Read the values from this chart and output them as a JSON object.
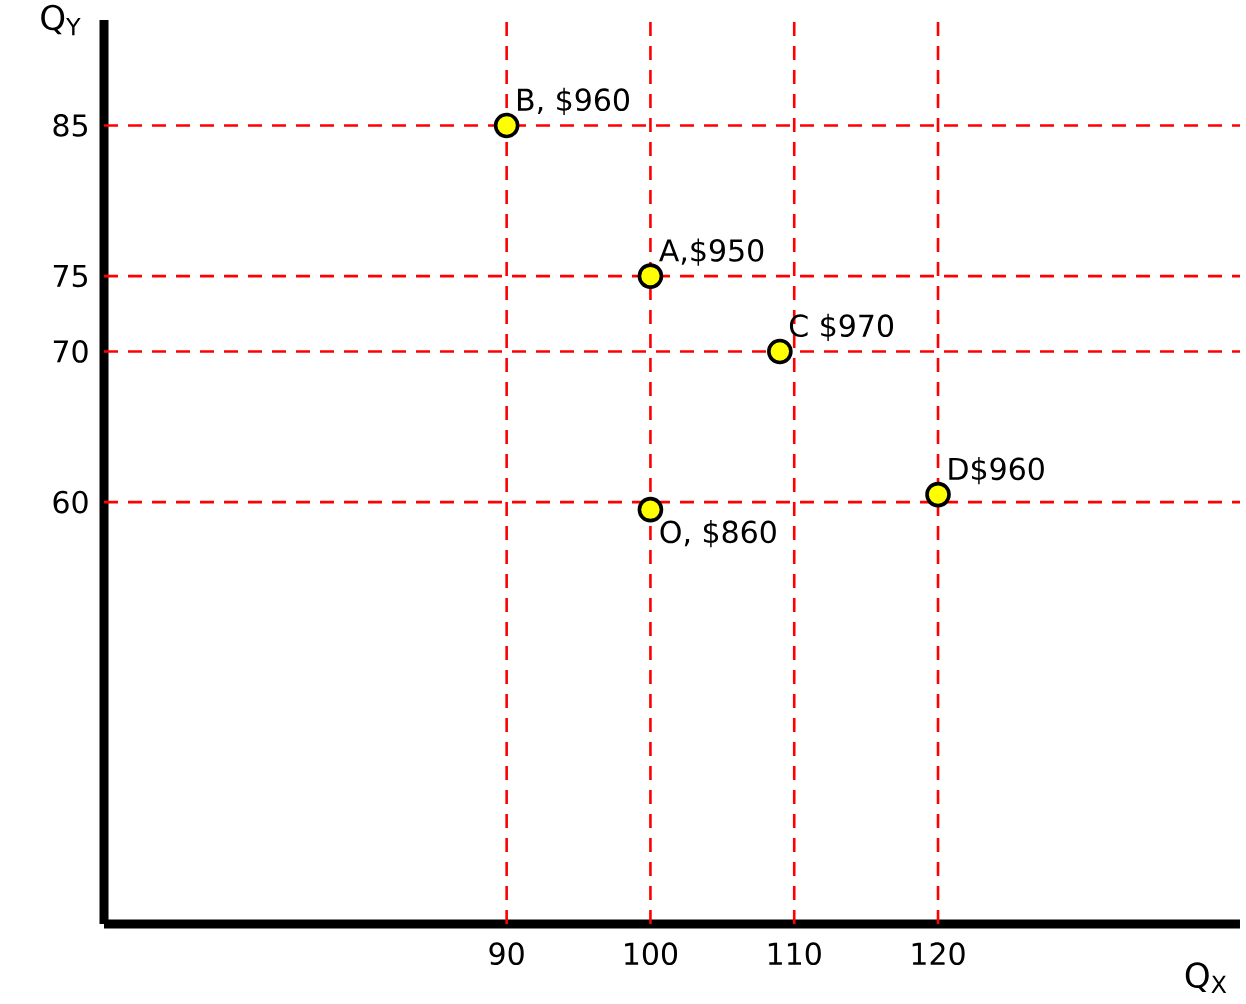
{
  "chart_data": {
    "type": "scatter",
    "xlabel": "Q$_{X}$",
    "ylabel": "Q$_{Y}$",
    "x": [
      90,
      100,
      109,
      120,
      100
    ],
    "series": [
      {
        "color": "#ffff00",
        "values": [
          85,
          75,
          70,
          60.5,
          59.5
        ]
      }
    ],
    "marker": "circle",
    "xlim": [
      62,
      141
    ],
    "ylim": [
      32,
      92
    ],
    "xticks": [
      90,
      100,
      110,
      120
    ],
    "yticks": [
      60,
      70,
      75,
      85
    ],
    "ref_lines": [
      {
        "axis": "x",
        "value": 90,
        "color": "#ff0000",
        "line_style": "dashed"
      },
      {
        "axis": "x",
        "value": 100,
        "color": "#ff0000",
        "line_style": "dashed"
      },
      {
        "axis": "x",
        "value": 110,
        "color": "#ff0000",
        "line_style": "dashed"
      },
      {
        "axis": "x",
        "value": 120,
        "color": "#ff0000",
        "line_style": "dashed"
      },
      {
        "axis": "y",
        "value": 60,
        "color": "#ff0000",
        "line_style": "dashed"
      },
      {
        "axis": "y",
        "value": 70,
        "color": "#ff0000",
        "line_style": "dashed"
      },
      {
        "axis": "y",
        "value": 75,
        "color": "#ff0000",
        "line_style": "dashed"
      },
      {
        "axis": "y",
        "value": 85,
        "color": "#ff0000",
        "line_style": "dashed"
      }
    ],
    "annotations": [
      {
        "text": "B, $960",
        "x": 90,
        "y": 85
      },
      {
        "text": "A,$950",
        "x": 100,
        "y": 75
      },
      {
        "text": "C $970",
        "x": 109,
        "y": 70
      },
      {
        "text": "D$960",
        "x": 120,
        "y": 60.5
      },
      {
        "text": "O, $860",
        "x": 100,
        "y": 59.5
      }
    ],
    "grid": false
  }
}
